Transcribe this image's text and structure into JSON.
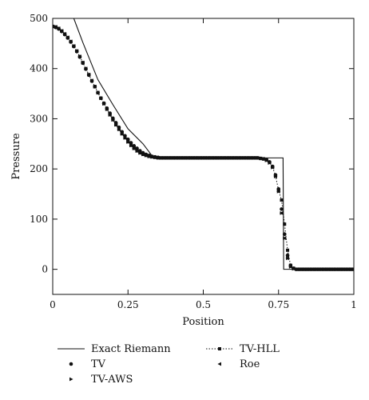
{
  "chart_data": {
    "type": "line",
    "title": "",
    "xlabel": "Position",
    "ylabel": "Pressure",
    "xlim": [
      0,
      1
    ],
    "ylim": [
      -50,
      500
    ],
    "xticks": [
      0,
      0.25,
      0.5,
      0.75,
      1
    ],
    "xtick_labels": [
      "0",
      "0.25",
      "0.5",
      "0.75",
      "1"
    ],
    "yticks": [
      0,
      100,
      200,
      300,
      400,
      500
    ],
    "ytick_labels": [
      "0",
      "100",
      "200",
      "300",
      "400",
      "500"
    ],
    "grid": false,
    "legend_position": "bottom",
    "series": [
      {
        "name": "Exact Riemann",
        "style": "solid-line",
        "x": [
          0.0,
          0.07,
          0.1,
          0.15,
          0.2,
          0.25,
          0.3,
          0.335,
          0.5,
          0.65,
          0.765,
          0.767,
          1.0
        ],
        "y": [
          500,
          500,
          452,
          378,
          328,
          280,
          250,
          222,
          222,
          222,
          222,
          0,
          0
        ]
      },
      {
        "name": "TV",
        "style": "circle-marker",
        "x": [
          0.0,
          0.01,
          0.02,
          0.03,
          0.04,
          0.05,
          0.06,
          0.07,
          0.08,
          0.09,
          0.1,
          0.11,
          0.12,
          0.13,
          0.14,
          0.15,
          0.16,
          0.17,
          0.18,
          0.19,
          0.2,
          0.21,
          0.22,
          0.23,
          0.24,
          0.25,
          0.26,
          0.27,
          0.28,
          0.29,
          0.3,
          0.31,
          0.32,
          0.33,
          0.34,
          0.35,
          0.36,
          0.37,
          0.38,
          0.39,
          0.4,
          0.41,
          0.42,
          0.43,
          0.44,
          0.45,
          0.46,
          0.47,
          0.48,
          0.49,
          0.5,
          0.51,
          0.52,
          0.53,
          0.54,
          0.55,
          0.56,
          0.57,
          0.58,
          0.59,
          0.6,
          0.61,
          0.62,
          0.63,
          0.64,
          0.65,
          0.66,
          0.67,
          0.68,
          0.69,
          0.7,
          0.71,
          0.72,
          0.73,
          0.74,
          0.75,
          0.76,
          0.77,
          0.78,
          0.79,
          0.8,
          0.81,
          0.82,
          0.83,
          0.84,
          0.85,
          0.86,
          0.87,
          0.88,
          0.89,
          0.9,
          0.91,
          0.92,
          0.93,
          0.94,
          0.95,
          0.96,
          0.97,
          0.98,
          0.99,
          1.0
        ],
        "y": [
          484,
          482,
          479,
          474,
          468,
          461,
          453,
          444,
          434,
          423,
          411,
          399,
          387,
          375,
          364,
          352,
          341,
          331,
          321,
          311,
          301,
          292,
          283,
          274,
          266,
          259,
          252,
          246,
          241,
          236,
          232,
          229,
          227,
          225,
          224,
          223,
          222,
          222,
          222,
          222,
          222,
          222,
          222,
          222,
          222,
          222,
          222,
          222,
          222,
          222,
          222,
          222,
          222,
          222,
          222,
          222,
          222,
          222,
          222,
          222,
          222,
          222,
          222,
          222,
          222,
          222,
          222,
          222,
          222,
          221,
          220,
          218,
          214,
          205,
          188,
          160,
          120,
          70,
          28,
          8,
          2,
          0,
          0,
          0,
          0,
          0,
          0,
          0,
          0,
          0,
          0,
          0,
          0,
          0,
          0,
          0,
          0,
          0,
          0,
          0,
          0
        ]
      },
      {
        "name": "TV-AWS",
        "style": "triangle-marker",
        "x": [
          0.0,
          0.01,
          0.02,
          0.03,
          0.04,
          0.05,
          0.06,
          0.07,
          0.08,
          0.09,
          0.1,
          0.11,
          0.12,
          0.13,
          0.14,
          0.15,
          0.16,
          0.17,
          0.18,
          0.19,
          0.2,
          0.21,
          0.22,
          0.23,
          0.24,
          0.25,
          0.26,
          0.27,
          0.28,
          0.29,
          0.3,
          0.31,
          0.32,
          0.33,
          0.34,
          0.35,
          0.36,
          0.37,
          0.38,
          0.39,
          0.4,
          0.41,
          0.42,
          0.43,
          0.44,
          0.45,
          0.46,
          0.47,
          0.48,
          0.49,
          0.5,
          0.51,
          0.52,
          0.53,
          0.54,
          0.55,
          0.56,
          0.57,
          0.58,
          0.59,
          0.6,
          0.61,
          0.62,
          0.63,
          0.64,
          0.65,
          0.66,
          0.67,
          0.68,
          0.69,
          0.7,
          0.71,
          0.72,
          0.73,
          0.74,
          0.75,
          0.76,
          0.77,
          0.78,
          0.79,
          0.8,
          0.81,
          0.82,
          0.83,
          0.84,
          0.85,
          0.86,
          0.87,
          0.88,
          0.89,
          0.9,
          0.91,
          0.92,
          0.93,
          0.94,
          0.95,
          0.96,
          0.97,
          0.98,
          0.99,
          1.0
        ],
        "y": [
          484,
          483,
          480,
          475,
          469,
          462,
          454,
          445,
          435,
          424,
          412,
          400,
          388,
          376,
          364,
          352,
          341,
          330,
          319,
          308,
          298,
          288,
          279,
          270,
          262,
          254,
          247,
          241,
          236,
          232,
          229,
          227,
          225,
          224,
          223,
          222,
          222,
          222,
          222,
          222,
          222,
          222,
          222,
          222,
          222,
          222,
          222,
          222,
          222,
          222,
          222,
          222,
          222,
          222,
          222,
          222,
          222,
          222,
          222,
          222,
          222,
          222,
          222,
          222,
          222,
          222,
          222,
          222,
          222,
          221,
          220,
          217,
          212,
          203,
          185,
          155,
          112,
          62,
          22,
          5,
          1,
          0,
          0,
          0,
          0,
          0,
          0,
          0,
          0,
          0,
          0,
          0,
          0,
          0,
          0,
          0,
          0,
          0,
          0,
          0,
          0
        ]
      },
      {
        "name": "TV-HLL",
        "style": "dotted-line-square-marker",
        "x": [
          0.0,
          0.01,
          0.02,
          0.03,
          0.04,
          0.05,
          0.06,
          0.07,
          0.08,
          0.09,
          0.1,
          0.11,
          0.12,
          0.13,
          0.14,
          0.15,
          0.16,
          0.17,
          0.18,
          0.19,
          0.2,
          0.21,
          0.22,
          0.23,
          0.24,
          0.25,
          0.26,
          0.27,
          0.28,
          0.29,
          0.3,
          0.31,
          0.32,
          0.33,
          0.34,
          0.35,
          0.36,
          0.37,
          0.38,
          0.39,
          0.4,
          0.41,
          0.42,
          0.43,
          0.44,
          0.45,
          0.46,
          0.47,
          0.48,
          0.49,
          0.5,
          0.51,
          0.52,
          0.53,
          0.54,
          0.55,
          0.56,
          0.57,
          0.58,
          0.59,
          0.6,
          0.61,
          0.62,
          0.63,
          0.64,
          0.65,
          0.66,
          0.67,
          0.68,
          0.69,
          0.7,
          0.71,
          0.72,
          0.73,
          0.74,
          0.75,
          0.76,
          0.77,
          0.78,
          0.79,
          0.8,
          0.81,
          0.82,
          0.83,
          0.84,
          0.85,
          0.86,
          0.87,
          0.88,
          0.89,
          0.9,
          0.91,
          0.92,
          0.93,
          0.94,
          0.95,
          0.96,
          0.97,
          0.98,
          0.99,
          1.0
        ],
        "y": [
          484,
          483,
          480,
          475,
          469,
          462,
          454,
          445,
          435,
          424,
          412,
          400,
          388,
          376,
          364,
          352,
          341,
          330,
          319,
          308,
          298,
          288,
          279,
          270,
          262,
          254,
          247,
          241,
          236,
          232,
          229,
          227,
          225,
          224,
          223,
          222,
          222,
          222,
          222,
          222,
          222,
          222,
          222,
          222,
          222,
          222,
          222,
          222,
          222,
          222,
          222,
          222,
          222,
          222,
          222,
          222,
          222,
          222,
          222,
          222,
          222,
          222,
          222,
          222,
          222,
          222,
          222,
          222,
          222,
          221,
          220,
          218,
          213,
          204,
          186,
          158,
          138,
          90,
          38,
          8,
          2,
          0,
          0,
          0,
          0,
          0,
          0,
          0,
          0,
          0,
          0,
          0,
          0,
          0,
          0,
          0,
          0,
          0,
          0,
          0,
          0
        ]
      },
      {
        "name": "Roe",
        "style": "left-triangle-marker",
        "x": [
          0.0,
          0.01,
          0.02,
          0.03,
          0.04,
          0.05,
          0.06,
          0.07,
          0.08,
          0.09,
          0.1,
          0.11,
          0.12,
          0.13,
          0.14,
          0.15,
          0.16,
          0.17,
          0.18,
          0.19,
          0.2,
          0.21,
          0.22,
          0.23,
          0.24,
          0.25,
          0.26,
          0.27,
          0.28,
          0.29,
          0.3,
          0.31,
          0.32,
          0.33,
          0.34,
          0.35,
          0.36,
          0.37,
          0.38,
          0.39,
          0.4,
          0.41,
          0.42,
          0.43,
          0.44,
          0.45,
          0.46,
          0.47,
          0.48,
          0.49,
          0.5,
          0.51,
          0.52,
          0.53,
          0.54,
          0.55,
          0.56,
          0.57,
          0.58,
          0.59,
          0.6,
          0.61,
          0.62,
          0.63,
          0.64,
          0.65,
          0.66,
          0.67,
          0.68,
          0.69,
          0.7,
          0.71,
          0.72,
          0.73,
          0.74,
          0.75,
          0.76,
          0.77,
          0.78,
          0.79,
          0.8,
          0.81,
          0.82,
          0.83,
          0.84,
          0.85,
          0.86,
          0.87,
          0.88,
          0.89,
          0.9,
          0.91,
          0.92,
          0.93,
          0.94,
          0.95,
          0.96,
          0.97,
          0.98,
          0.99,
          1.0
        ],
        "y": [
          484,
          483,
          480,
          475,
          469,
          462,
          454,
          445,
          435,
          424,
          412,
          400,
          388,
          376,
          364,
          352,
          341,
          330,
          319,
          308,
          298,
          288,
          279,
          270,
          262,
          254,
          247,
          241,
          236,
          232,
          229,
          227,
          225,
          224,
          223,
          222,
          222,
          222,
          222,
          222,
          222,
          222,
          222,
          222,
          222,
          222,
          222,
          222,
          222,
          222,
          222,
          222,
          222,
          222,
          222,
          222,
          222,
          222,
          222,
          222,
          222,
          222,
          222,
          222,
          222,
          222,
          222,
          222,
          222,
          221,
          220,
          217,
          212,
          203,
          185,
          155,
          112,
          62,
          22,
          5,
          1,
          0,
          0,
          0,
          0,
          0,
          0,
          0,
          0,
          0,
          0,
          0,
          0,
          0,
          0,
          0,
          0,
          0,
          0,
          0,
          0
        ]
      }
    ],
    "colors": {
      "ink": "#111111",
      "background": "#ffffff"
    }
  }
}
